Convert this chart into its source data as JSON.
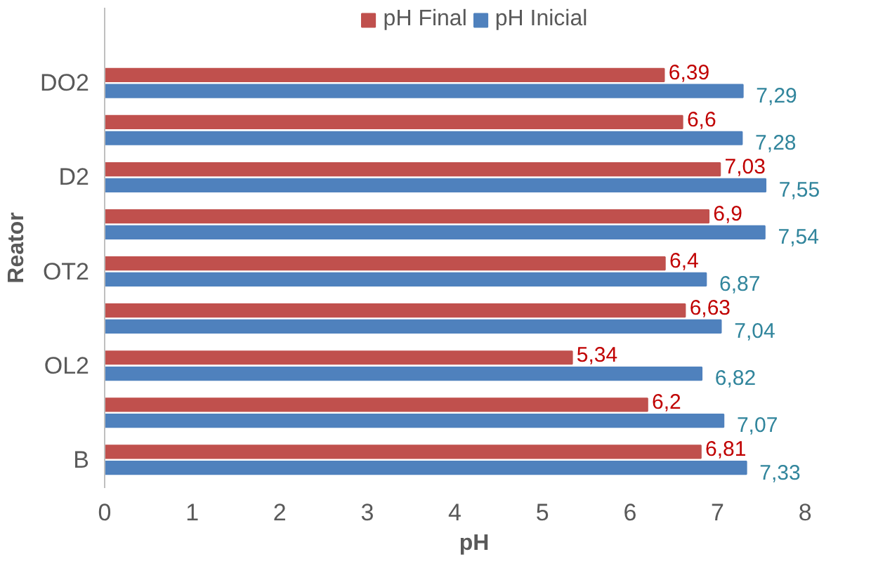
{
  "chart_data": {
    "type": "bar",
    "orientation": "horizontal",
    "xlabel": "pH",
    "ylabel": "Reator",
    "categories": [
      "DO2",
      null,
      "D2",
      null,
      "OT2",
      null,
      "OL2",
      null,
      "B"
    ],
    "series": [
      {
        "name": "pH Final",
        "color": "#c0504d",
        "values": [
          6.39,
          6.6,
          7.03,
          6.9,
          6.4,
          6.63,
          5.34,
          6.2,
          6.81
        ],
        "value_labels": [
          "6,39",
          "6,6",
          "7,03",
          "6,9",
          "6,4",
          "6,63",
          "5,34",
          "6,2",
          "6,81"
        ]
      },
      {
        "name": "pH Inicial",
        "color": "#4f81bd",
        "values": [
          7.29,
          7.28,
          7.55,
          7.54,
          6.87,
          7.04,
          6.82,
          7.07,
          7.33
        ],
        "value_labels": [
          "7,29",
          "7,28",
          "7,55",
          "7,54",
          "6,87",
          "7,04",
          "6,82",
          "7,07",
          "7,33"
        ]
      }
    ],
    "xlim": [
      0,
      8
    ],
    "xticks": [
      0,
      1,
      2,
      3,
      4,
      5,
      6,
      7,
      8
    ],
    "grid": false,
    "legend": "top"
  }
}
